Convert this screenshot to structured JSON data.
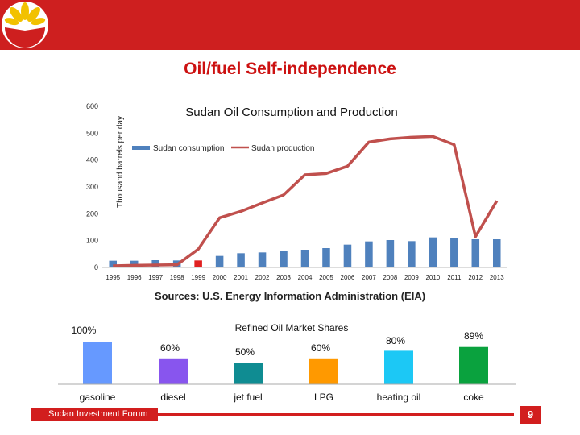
{
  "slide": {
    "title": "Oil/fuel Self-independence",
    "sources": "Sources: U.S. Energy Information Administration (EIA)",
    "footer": "Sudan Investment Forum",
    "page_number": "9"
  },
  "colors": {
    "header": "#ce1f1f",
    "consumption": "#4f81bd",
    "consumption_highlight": "#e02020",
    "production": "#c0504d"
  },
  "chart_data": [
    {
      "type": "bar",
      "title": "Sudan Oil Consumption and Production",
      "ylabel": "Thousand barrels per day",
      "ylim": [
        0,
        600
      ],
      "yticks": [
        "0",
        "100",
        "200",
        "300",
        "400",
        "500",
        "600"
      ],
      "legend": "top",
      "categories": [
        "1995",
        "1996",
        "1997",
        "1998",
        "1999",
        "2000",
        "2001",
        "2002",
        "2003",
        "2004",
        "2005",
        "2006",
        "2007",
        "2008",
        "2009",
        "2010",
        "2011",
        "2012",
        "2013"
      ],
      "series": [
        {
          "name": "Sudan consumption",
          "kind": "bar",
          "values": [
            25,
            25,
            27,
            26,
            26,
            43,
            53,
            56,
            60,
            66,
            72,
            85,
            97,
            102,
            98,
            112,
            110,
            105,
            105
          ],
          "highlight_category": "1999"
        },
        {
          "name": "Sudan production",
          "kind": "line",
          "values": [
            6,
            8,
            9,
            10,
            68,
            185,
            209,
            240,
            270,
            345,
            350,
            377,
            467,
            479,
            485,
            488,
            457,
            115,
            248
          ]
        }
      ]
    },
    {
      "type": "bar",
      "title": "Refined Oil Market Shares",
      "categories": [
        "gasoline",
        "diesel",
        "jet fuel",
        "LPG",
        "heating oil",
        "coke"
      ],
      "values": [
        100,
        60,
        50,
        60,
        80,
        89
      ],
      "value_labels": [
        "100%",
        "60%",
        "50%",
        "60%",
        "80%",
        "89%"
      ],
      "bar_colors": [
        "#6699ff",
        "#8855ee",
        "#0f8c92",
        "#ff9900",
        "#1cc8f5",
        "#0aa23e"
      ]
    }
  ]
}
